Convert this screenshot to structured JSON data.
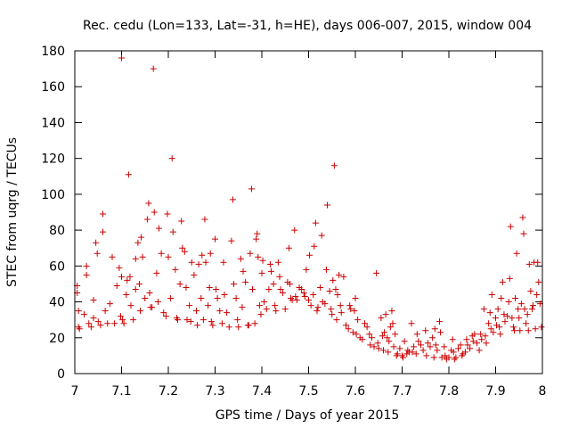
{
  "chart_data": {
    "type": "scatter",
    "title": "Rec. cedu (Lon=133, Lat=-31, h=HE), days 006-007, 2015, window 004",
    "xlabel": "GPS time / Days of year 2015",
    "ylabel": "STEC from uqrg / TECUs",
    "xlim": [
      7,
      8
    ],
    "ylim": [
      0,
      180
    ],
    "xticks": [
      "7",
      "7.1",
      "7.2",
      "7.3",
      "7.4",
      "7.5",
      "7.6",
      "7.7",
      "7.8",
      "7.9",
      "8"
    ],
    "yticks": [
      "0",
      "20",
      "40",
      "60",
      "80",
      "100",
      "120",
      "140",
      "160",
      "180"
    ],
    "marker": "+",
    "color": "#cc0000",
    "series": [
      {
        "name": "STEC",
        "points": [
          [
            7.005,
            49
          ],
          [
            7.005,
            45
          ],
          [
            7.008,
            35
          ],
          [
            7.008,
            26
          ],
          [
            7.01,
            25
          ],
          [
            7.02,
            33
          ],
          [
            7.025,
            55
          ],
          [
            7.025,
            60
          ],
          [
            7.03,
            28
          ],
          [
            7.035,
            26
          ],
          [
            7.04,
            31
          ],
          [
            7.04,
            41
          ],
          [
            7.045,
            73
          ],
          [
            7.048,
            67
          ],
          [
            7.05,
            29
          ],
          [
            7.055,
            27
          ],
          [
            7.06,
            79
          ],
          [
            7.06,
            89
          ],
          [
            7.065,
            35
          ],
          [
            7.07,
            28
          ],
          [
            7.075,
            39
          ],
          [
            7.08,
            65
          ],
          [
            7.085,
            28
          ],
          [
            7.09,
            49
          ],
          [
            7.095,
            59
          ],
          [
            7.098,
            32
          ],
          [
            7.1,
            176
          ],
          [
            7.1,
            54
          ],
          [
            7.102,
            30
          ],
          [
            7.105,
            28
          ],
          [
            7.11,
            44
          ],
          [
            7.112,
            52
          ],
          [
            7.115,
            111
          ],
          [
            7.118,
            54
          ],
          [
            7.12,
            38
          ],
          [
            7.125,
            30
          ],
          [
            7.13,
            47
          ],
          [
            7.13,
            64
          ],
          [
            7.135,
            73
          ],
          [
            7.138,
            50
          ],
          [
            7.14,
            35
          ],
          [
            7.142,
            76
          ],
          [
            7.145,
            65
          ],
          [
            7.15,
            42
          ],
          [
            7.155,
            86
          ],
          [
            7.158,
            95
          ],
          [
            7.16,
            45
          ],
          [
            7.162,
            37
          ],
          [
            7.165,
            37
          ],
          [
            7.168,
            170
          ],
          [
            7.17,
            90
          ],
          [
            7.175,
            56
          ],
          [
            7.178,
            40
          ],
          [
            7.18,
            81
          ],
          [
            7.185,
            67
          ],
          [
            7.19,
            34
          ],
          [
            7.195,
            32
          ],
          [
            7.198,
            89
          ],
          [
            7.2,
            65
          ],
          [
            7.205,
            42
          ],
          [
            7.208,
            120
          ],
          [
            7.21,
            79
          ],
          [
            7.215,
            58
          ],
          [
            7.218,
            31
          ],
          [
            7.22,
            30
          ],
          [
            7.225,
            50
          ],
          [
            7.228,
            85
          ],
          [
            7.23,
            70
          ],
          [
            7.235,
            68
          ],
          [
            7.238,
            48
          ],
          [
            7.24,
            30
          ],
          [
            7.245,
            38
          ],
          [
            7.248,
            29
          ],
          [
            7.25,
            62
          ],
          [
            7.255,
            55
          ],
          [
            7.26,
            35
          ],
          [
            7.262,
            27
          ],
          [
            7.265,
            61
          ],
          [
            7.27,
            42
          ],
          [
            7.272,
            66
          ],
          [
            7.275,
            30
          ],
          [
            7.278,
            86
          ],
          [
            7.28,
            62
          ],
          [
            7.285,
            38
          ],
          [
            7.288,
            48
          ],
          [
            7.29,
            67
          ],
          [
            7.292,
            29
          ],
          [
            7.295,
            27
          ],
          [
            7.3,
            75
          ],
          [
            7.302,
            47
          ],
          [
            7.305,
            42
          ],
          [
            7.31,
            35
          ],
          [
            7.315,
            28
          ],
          [
            7.318,
            62
          ],
          [
            7.32,
            44
          ],
          [
            7.325,
            34
          ],
          [
            7.33,
            26
          ],
          [
            7.335,
            74
          ],
          [
            7.338,
            97
          ],
          [
            7.34,
            50
          ],
          [
            7.345,
            42
          ],
          [
            7.348,
            30
          ],
          [
            7.35,
            26
          ],
          [
            7.355,
            64
          ],
          [
            7.358,
            37
          ],
          [
            7.36,
            57
          ],
          [
            7.365,
            51
          ],
          [
            7.37,
            27
          ],
          [
            7.372,
            27
          ],
          [
            7.375,
            67
          ],
          [
            7.378,
            103
          ],
          [
            7.38,
            47
          ],
          [
            7.385,
            28
          ],
          [
            7.388,
            75
          ],
          [
            7.39,
            78
          ],
          [
            7.392,
            65
          ],
          [
            7.395,
            38
          ],
          [
            7.398,
            33
          ],
          [
            7.4,
            56
          ],
          [
            7.402,
            63
          ],
          [
            7.405,
            40
          ],
          [
            7.41,
            36
          ],
          [
            7.415,
            47
          ],
          [
            7.418,
            61
          ],
          [
            7.42,
            57
          ],
          [
            7.425,
            50
          ],
          [
            7.428,
            38
          ],
          [
            7.43,
            35
          ],
          [
            7.435,
            62
          ],
          [
            7.438,
            54
          ],
          [
            7.44,
            47
          ],
          [
            7.445,
            45
          ],
          [
            7.45,
            36
          ],
          [
            7.455,
            51
          ],
          [
            7.458,
            70
          ],
          [
            7.46,
            50
          ],
          [
            7.462,
            42
          ],
          [
            7.465,
            41
          ],
          [
            7.47,
            80
          ],
          [
            7.472,
            43
          ],
          [
            7.475,
            41
          ],
          [
            7.48,
            48
          ],
          [
            7.485,
            47
          ],
          [
            7.49,
            45
          ],
          [
            7.492,
            43
          ],
          [
            7.495,
            58
          ],
          [
            7.5,
            41
          ],
          [
            7.502,
            66
          ],
          [
            7.505,
            38
          ],
          [
            7.51,
            44
          ],
          [
            7.512,
            71
          ],
          [
            7.515,
            84
          ],
          [
            7.518,
            35
          ],
          [
            7.52,
            37
          ],
          [
            7.525,
            48
          ],
          [
            7.528,
            77
          ],
          [
            7.53,
            40
          ],
          [
            7.535,
            39
          ],
          [
            7.538,
            58
          ],
          [
            7.54,
            94
          ],
          [
            7.545,
            46
          ],
          [
            7.548,
            36
          ],
          [
            7.55,
            33
          ],
          [
            7.552,
            52
          ],
          [
            7.555,
            116
          ],
          [
            7.558,
            47
          ],
          [
            7.56,
            30
          ],
          [
            7.562,
            44
          ],
          [
            7.565,
            55
          ],
          [
            7.568,
            38
          ],
          [
            7.57,
            34
          ],
          [
            7.575,
            54
          ],
          [
            7.58,
            27
          ],
          [
            7.585,
            25
          ],
          [
            7.588,
            38
          ],
          [
            7.59,
            36
          ],
          [
            7.595,
            23
          ],
          [
            7.598,
            35
          ],
          [
            7.6,
            42
          ],
          [
            7.602,
            22
          ],
          [
            7.605,
            30
          ],
          [
            7.61,
            20
          ],
          [
            7.615,
            19
          ],
          [
            7.62,
            28
          ],
          [
            7.625,
            26
          ],
          [
            7.63,
            22
          ],
          [
            7.632,
            16
          ],
          [
            7.635,
            20
          ],
          [
            7.64,
            15
          ],
          [
            7.645,
            56
          ],
          [
            7.648,
            17
          ],
          [
            7.65,
            14
          ],
          [
            7.655,
            31
          ],
          [
            7.658,
            21
          ],
          [
            7.66,
            13
          ],
          [
            7.662,
            23
          ],
          [
            7.665,
            33
          ],
          [
            7.668,
            20
          ],
          [
            7.67,
            12
          ],
          [
            7.672,
            18
          ],
          [
            7.675,
            26
          ],
          [
            7.678,
            35
          ],
          [
            7.68,
            28
          ],
          [
            7.682,
            15
          ],
          [
            7.685,
            22
          ],
          [
            7.688,
            10
          ],
          [
            7.69,
            11
          ],
          [
            7.695,
            14
          ],
          [
            7.7,
            10
          ],
          [
            7.702,
            9
          ],
          [
            7.705,
            18
          ],
          [
            7.71,
            11
          ],
          [
            7.712,
            13
          ],
          [
            7.715,
            12
          ],
          [
            7.72,
            28
          ],
          [
            7.722,
            12
          ],
          [
            7.725,
            15
          ],
          [
            7.73,
            11
          ],
          [
            7.732,
            22
          ],
          [
            7.735,
            18
          ],
          [
            7.74,
            16
          ],
          [
            7.745,
            13
          ],
          [
            7.75,
            24
          ],
          [
            7.752,
            10
          ],
          [
            7.755,
            17
          ],
          [
            7.76,
            15
          ],
          [
            7.765,
            20
          ],
          [
            7.768,
            9
          ],
          [
            7.77,
            25
          ],
          [
            7.772,
            16
          ],
          [
            7.775,
            13
          ],
          [
            7.78,
            29
          ],
          [
            7.782,
            23
          ],
          [
            7.785,
            9
          ],
          [
            7.79,
            15
          ],
          [
            7.792,
            10
          ],
          [
            7.795,
            8
          ],
          [
            7.8,
            9
          ],
          [
            7.805,
            13
          ],
          [
            7.808,
            19
          ],
          [
            7.81,
            12
          ],
          [
            7.812,
            8
          ],
          [
            7.815,
            9
          ],
          [
            7.82,
            14
          ],
          [
            7.825,
            16
          ],
          [
            7.828,
            10
          ],
          [
            7.83,
            11
          ],
          [
            7.835,
            12
          ],
          [
            7.838,
            19
          ],
          [
            7.84,
            16
          ],
          [
            7.845,
            14
          ],
          [
            7.85,
            21
          ],
          [
            7.852,
            18
          ],
          [
            7.855,
            22
          ],
          [
            7.86,
            17
          ],
          [
            7.865,
            13
          ],
          [
            7.868,
            22
          ],
          [
            7.87,
            19
          ],
          [
            7.875,
            36
          ],
          [
            7.878,
            21
          ],
          [
            7.88,
            17
          ],
          [
            7.885,
            28
          ],
          [
            7.888,
            34
          ],
          [
            7.89,
            25
          ],
          [
            7.892,
            44
          ],
          [
            7.895,
            23
          ],
          [
            7.9,
            31
          ],
          [
            7.902,
            27
          ],
          [
            7.905,
            36
          ],
          [
            7.908,
            26
          ],
          [
            7.91,
            22
          ],
          [
            7.912,
            42
          ],
          [
            7.915,
            51
          ],
          [
            7.918,
            33
          ],
          [
            7.92,
            29
          ],
          [
            7.925,
            32
          ],
          [
            7.928,
            40
          ],
          [
            7.93,
            53
          ],
          [
            7.932,
            82
          ],
          [
            7.935,
            31
          ],
          [
            7.938,
            26
          ],
          [
            7.94,
            24
          ],
          [
            7.942,
            42
          ],
          [
            7.945,
            67
          ],
          [
            7.948,
            36
          ],
          [
            7.95,
            31
          ],
          [
            7.952,
            24
          ],
          [
            7.955,
            39
          ],
          [
            7.958,
            87
          ],
          [
            7.96,
            78
          ],
          [
            7.962,
            36
          ],
          [
            7.965,
            28
          ],
          [
            7.968,
            33
          ],
          [
            7.97,
            24
          ],
          [
            7.972,
            61
          ],
          [
            7.975,
            46
          ],
          [
            7.978,
            36
          ],
          [
            7.98,
            38
          ],
          [
            7.982,
            62
          ],
          [
            7.985,
            25
          ],
          [
            7.988,
            44
          ],
          [
            7.99,
            62
          ],
          [
            7.992,
            51
          ],
          [
            7.995,
            39
          ],
          [
            7.998,
            26
          ]
        ]
      }
    ]
  }
}
